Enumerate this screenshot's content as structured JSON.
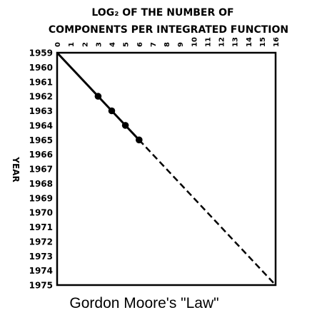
{
  "chart_data": {
    "type": "line",
    "title_line1": "LOG₂ OF THE NUMBER OF",
    "title_line2": "COMPONENTS PER INTEGRATED FUNCTION",
    "ylabel": "YEAR",
    "caption": "Gordon Moore's \"Law\"",
    "x_ticks": [
      "0",
      "1",
      "2",
      "3",
      "4",
      "5",
      "6",
      "7",
      "8",
      "9",
      "10",
      "11",
      "12",
      "13",
      "14",
      "15",
      "16"
    ],
    "y_ticks": [
      "1959",
      "1960",
      "1961",
      "1962",
      "1963",
      "1964",
      "1965",
      "1966",
      "1967",
      "1968",
      "1969",
      "1970",
      "1971",
      "1972",
      "1973",
      "1974",
      "1975"
    ],
    "xlim": [
      0,
      16
    ],
    "ylim": [
      1959,
      1975
    ],
    "observed_points": [
      {
        "x": 0,
        "y": 1959
      },
      {
        "x": 3,
        "y": 1962
      },
      {
        "x": 4,
        "y": 1963
      },
      {
        "x": 5,
        "y": 1964
      },
      {
        "x": 6,
        "y": 1965
      }
    ],
    "extrapolation": [
      {
        "x": 6,
        "y": 1965
      },
      {
        "x": 16,
        "y": 1975
      }
    ],
    "grid": false
  }
}
